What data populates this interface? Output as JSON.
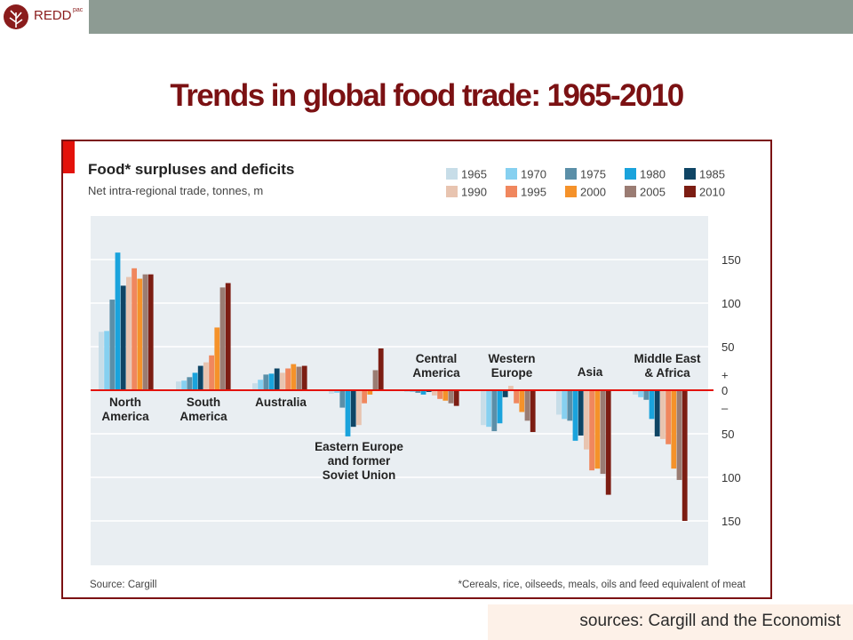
{
  "header": {
    "logo_text": "REDD",
    "logo_sup": "pac"
  },
  "slide": {
    "title": "Trends in global food trade: 1965-2010",
    "source_note": "sources: Cargill and the Economist"
  },
  "colors": {
    "title": "#7b1113",
    "frame": "#7b1113",
    "accent_tab": "#e3120b",
    "zero_line": "#e3120b"
  },
  "chart_data": {
    "type": "bar",
    "title": "Food* surpluses and deficits",
    "subtitle": "Net intra-regional trade, tonnes, m",
    "source": "Source: Cargill",
    "footnote": "*Cereals, rice, oilseeds, meals, oils and feed equivalent of meat",
    "ylim": [
      -155,
      160
    ],
    "yticks": [
      {
        "value": 150,
        "label": "150"
      },
      {
        "value": 100,
        "label": "100"
      },
      {
        "value": 50,
        "label": "50"
      },
      {
        "value": 0,
        "label": "0"
      },
      {
        "value": -50,
        "label": "50"
      },
      {
        "value": -100,
        "label": "100"
      },
      {
        "value": -150,
        "label": "150"
      }
    ],
    "sign_labels": {
      "plus": "+",
      "minus": "–"
    },
    "grid": true,
    "legend_position": "top-right",
    "categories": [
      {
        "lines": [
          "North",
          "America"
        ]
      },
      {
        "lines": [
          "South",
          "America"
        ]
      },
      {
        "lines": [
          "Australia"
        ]
      },
      {
        "lines": [
          "Eastern Europe",
          "and former",
          "Soviet Union"
        ]
      },
      {
        "lines": [
          "Central",
          "America"
        ]
      },
      {
        "lines": [
          "Western",
          "Europe"
        ]
      },
      {
        "lines": [
          "Asia"
        ]
      },
      {
        "lines": [
          "Middle East",
          "& Africa"
        ]
      }
    ],
    "series": [
      {
        "name": "1965",
        "color": "#c7dde8",
        "values": [
          67,
          10,
          8,
          -4,
          -2,
          -40,
          -28,
          -5
        ]
      },
      {
        "name": "1970",
        "color": "#86d0f0",
        "values": [
          68,
          11,
          12,
          -3,
          -2,
          -42,
          -33,
          -8
        ]
      },
      {
        "name": "1975",
        "color": "#5b8fa8",
        "values": [
          104,
          15,
          18,
          -20,
          -3,
          -47,
          -35,
          -11
        ]
      },
      {
        "name": "1980",
        "color": "#1aa3dc",
        "values": [
          158,
          20,
          19,
          -53,
          -5,
          -38,
          -58,
          -33
        ]
      },
      {
        "name": "1985",
        "color": "#0f4565",
        "values": [
          120,
          28,
          25,
          -42,
          -2,
          -8,
          -52,
          -53
        ]
      },
      {
        "name": "1990",
        "color": "#e8c4b0",
        "values": [
          130,
          32,
          20,
          -40,
          -6,
          5,
          -68,
          -56
        ]
      },
      {
        "name": "1995",
        "color": "#f0875e",
        "values": [
          140,
          40,
          25,
          -15,
          -10,
          -15,
          -92,
          -62
        ]
      },
      {
        "name": "2000",
        "color": "#f5922a",
        "values": [
          128,
          72,
          30,
          -5,
          -12,
          -25,
          -90,
          -90
        ]
      },
      {
        "name": "2005",
        "color": "#9a7c73",
        "values": [
          133,
          118,
          27,
          23,
          -15,
          -35,
          -96,
          -103
        ]
      },
      {
        "name": "2010",
        "color": "#7c1d13",
        "values": [
          133,
          123,
          28,
          48,
          -18,
          -48,
          -120,
          -150
        ]
      }
    ]
  }
}
